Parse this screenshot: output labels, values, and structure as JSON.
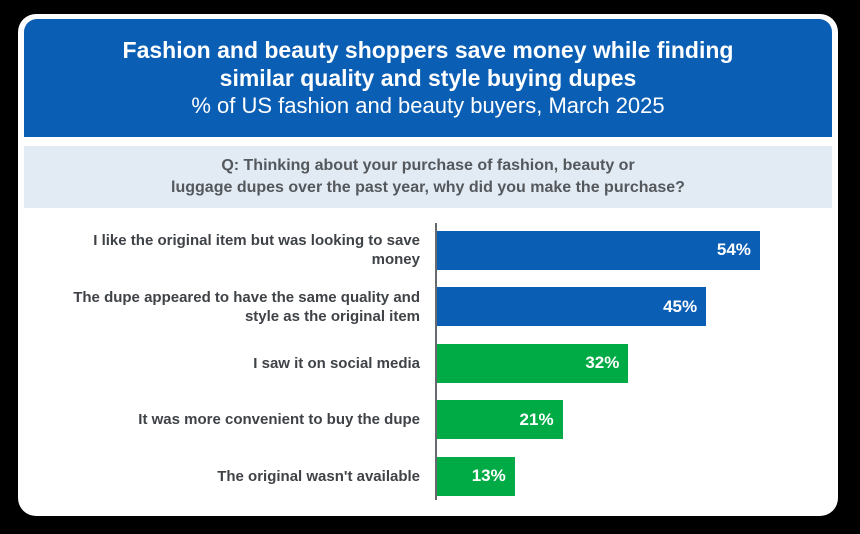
{
  "header": {
    "title_line1": "Fashion and beauty shoppers save money while finding",
    "title_line2": "similar quality and style buying dupes",
    "subtitle": "% of US fashion and beauty buyers, March 2025"
  },
  "question": {
    "line1": "Q: Thinking about your purchase of fashion, beauty or",
    "line2": "luggage dupes over the past year, why did you make the purchase?"
  },
  "chart_data": {
    "type": "bar",
    "orientation": "horizontal",
    "title": "Fashion and beauty shoppers save money while finding similar quality and style buying dupes",
    "subtitle": "% of US fashion and beauty buyers, March 2025",
    "annotation": "Q: Thinking about your purchase of fashion, beauty or luggage dupes over the past year, why did you make the purchase?",
    "categories": [
      "I like the original item but was looking to save money",
      "The dupe appeared to have the same quality and style as the original item",
      "I saw it on social media",
      "It was more convenient to buy the dupe",
      "The original wasn't available"
    ],
    "values": [
      54,
      45,
      32,
      21,
      13
    ],
    "value_labels": [
      "54%",
      "45%",
      "32%",
      "21%",
      "13%"
    ],
    "bar_colors": [
      "#0a5eb4",
      "#0a5eb4",
      "#00ab45",
      "#00ab45",
      "#00ab45"
    ],
    "xlim": [
      0,
      60
    ],
    "grid": false,
    "legend": false,
    "value_label_position": "inside-end"
  },
  "colors": {
    "background": "#000000",
    "card": "#ffffff",
    "header_blue": "#0a5eb4",
    "question_band": "#e2ebf3",
    "bar_blue": "#0a5eb4",
    "bar_green": "#00ab45",
    "axis": "#66696d",
    "label_text": "#3f4347",
    "question_text": "#54585d"
  }
}
